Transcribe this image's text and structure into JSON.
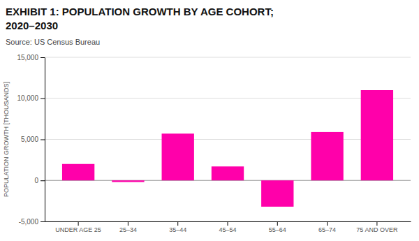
{
  "chart_data": {
    "type": "bar",
    "title": [
      "EXHIBIT 1: POPULATION GROWTH BY AGE COHORT;",
      "2020–2030"
    ],
    "source": "Source: US Census Bureau",
    "categories": [
      "UNDER AGE 25",
      "25–34",
      "35–44",
      "45–54",
      "55–64",
      "65–74",
      "75 AND OVER"
    ],
    "values": [
      2000,
      -200,
      5700,
      1700,
      -3200,
      5900,
      11000
    ],
    "color": "#FF00AA",
    "ylabel": "POPULATION GROWTH [THOUSANDS]",
    "ylim": [
      -5000,
      15000
    ],
    "yticks": [
      {
        "value": -5000,
        "label": "-5,000"
      },
      0,
      {
        "value": 5000,
        "label": "5,000"
      },
      {
        "value": 10000,
        "label": "10,000"
      },
      {
        "value": 15000,
        "label": "15,000"
      }
    ],
    "grid": true
  }
}
